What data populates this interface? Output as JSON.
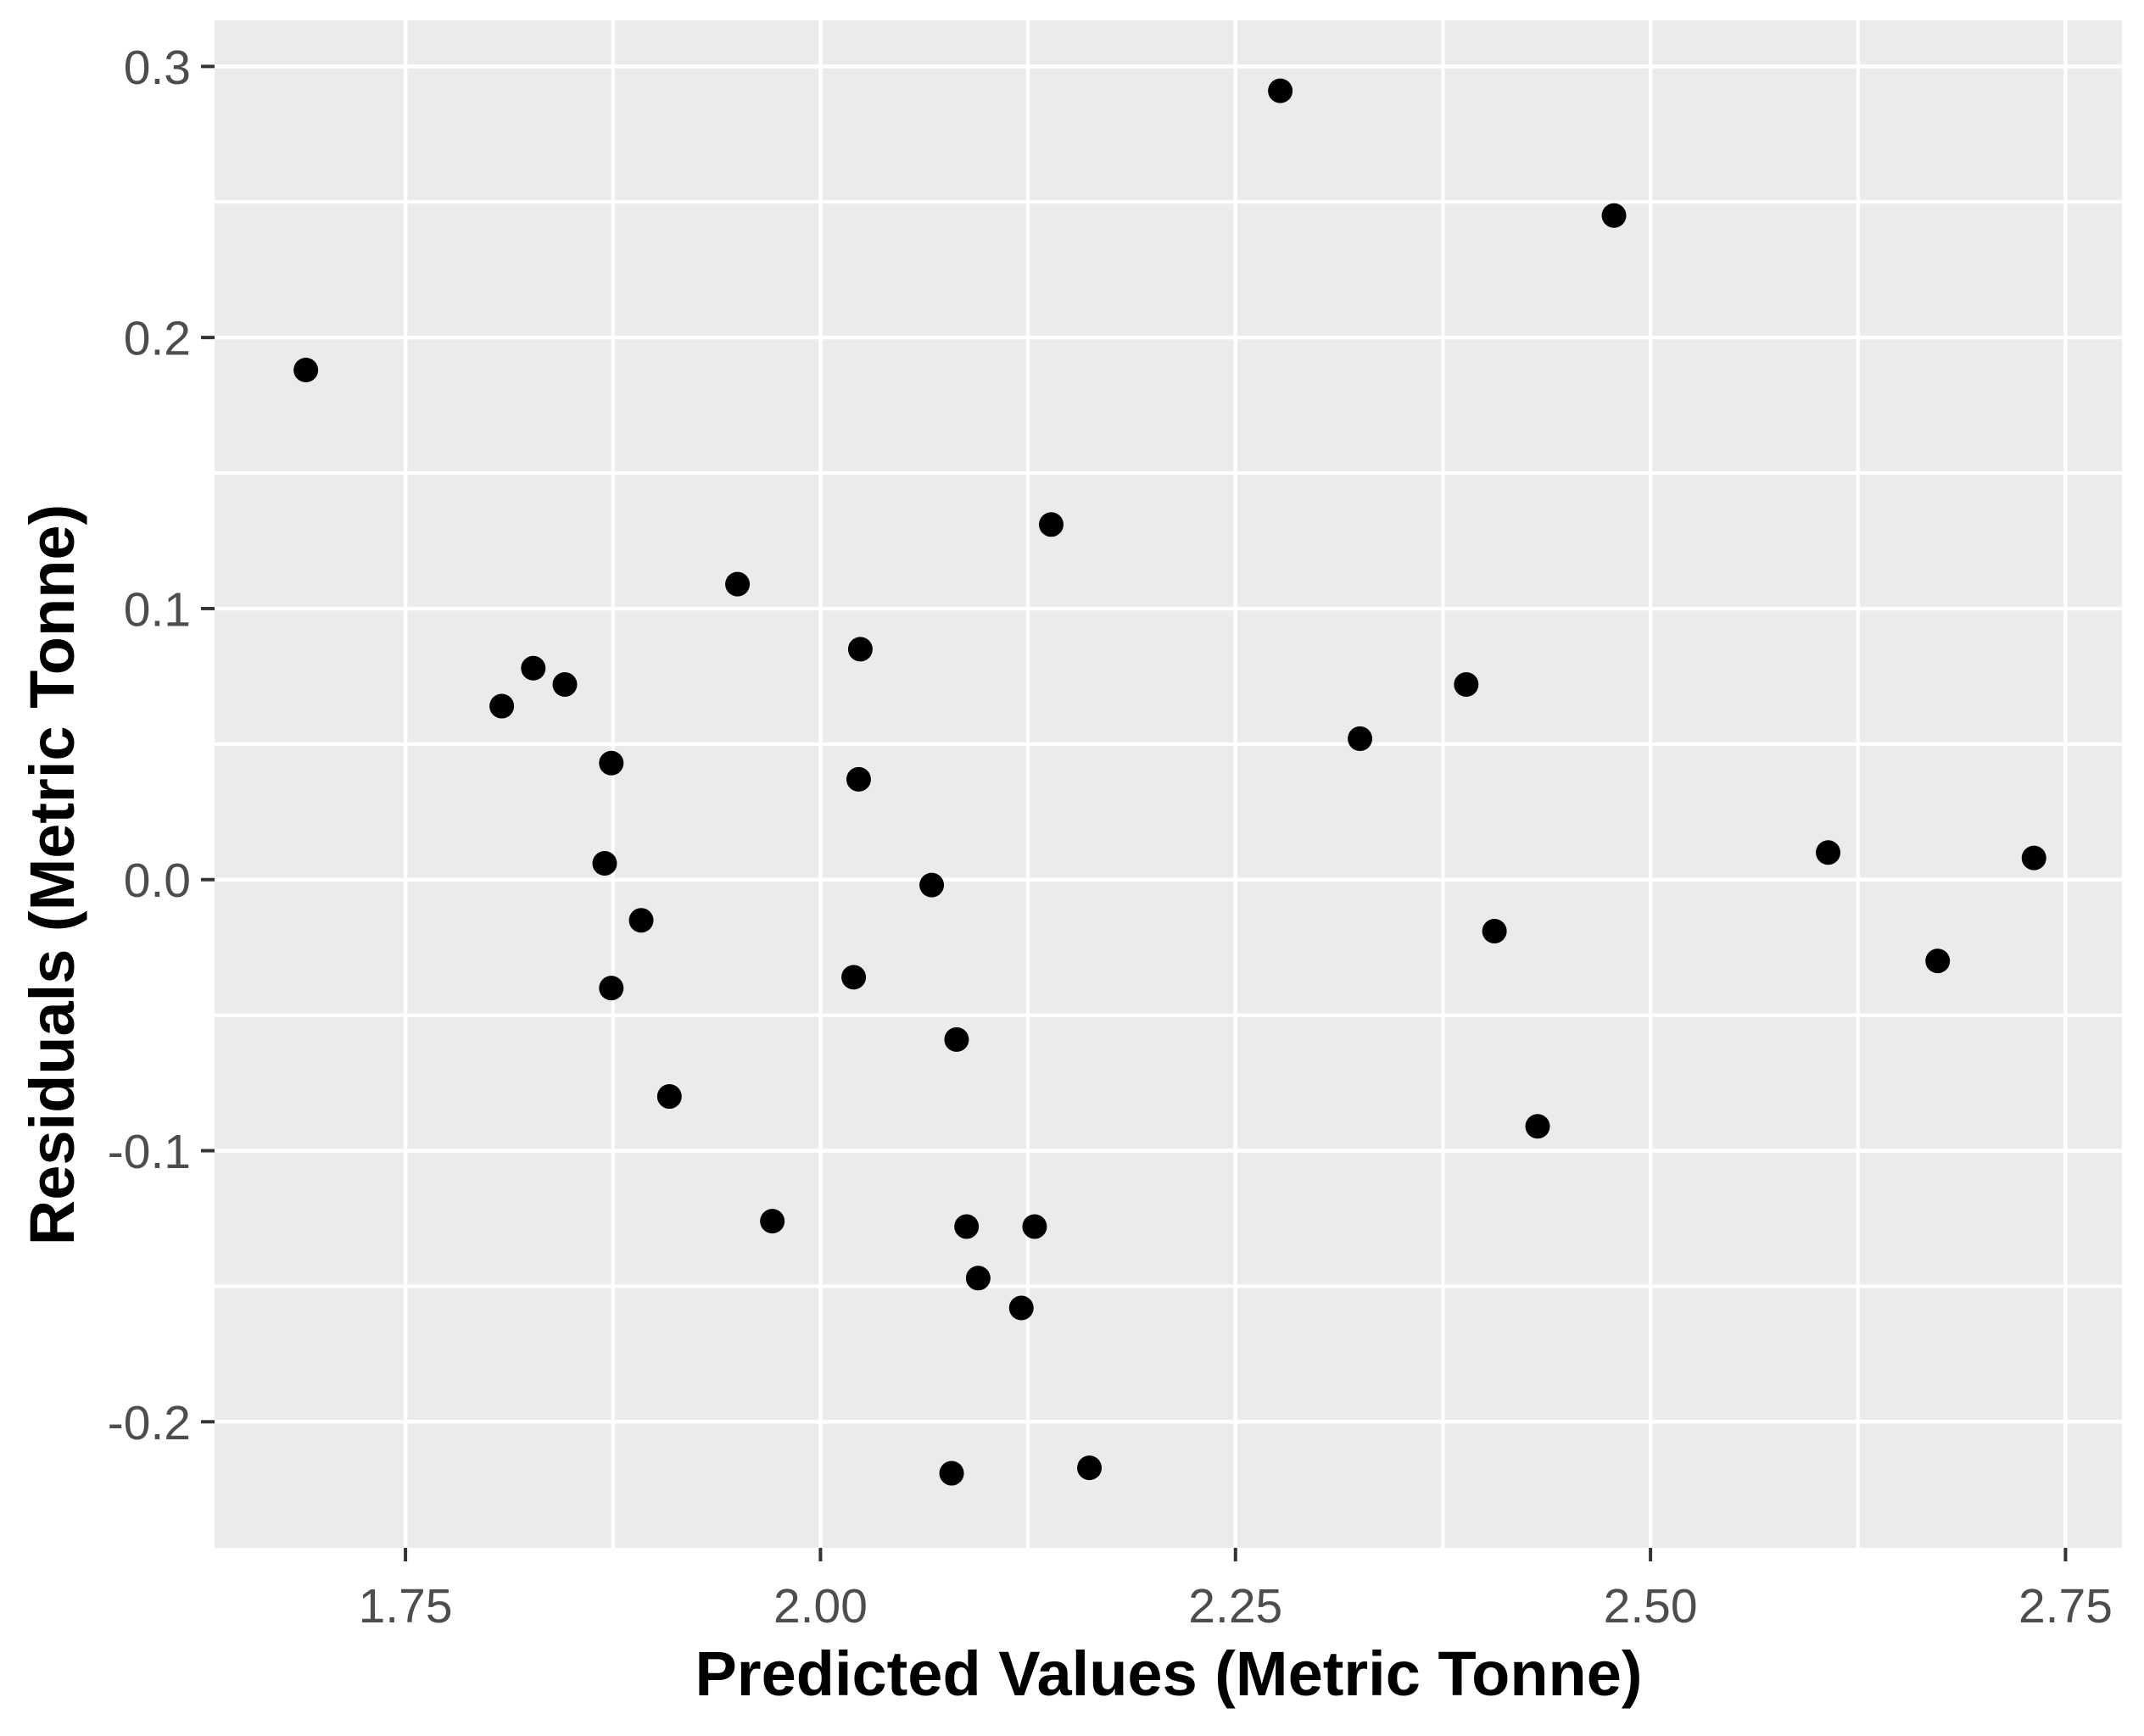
{
  "chart_data": {
    "type": "scatter",
    "title": "",
    "xlabel": "Predicted Values (Metric Tonne)",
    "ylabel": "Residuals (Metric Tonne)",
    "xlim": [
      1.635,
      2.784
    ],
    "ylim": [
      -0.2465,
      0.317
    ],
    "x_ticks": {
      "values": [
        1.75,
        2.0,
        2.25,
        2.5,
        2.75
      ],
      "labels": [
        "1.75",
        "2.00",
        "2.25",
        "2.50",
        "2.75"
      ]
    },
    "y_ticks": {
      "values": [
        0.3,
        0.2,
        0.1,
        0.0,
        -0.1,
        -0.2
      ],
      "labels": [
        "0.3",
        "0.2",
        "0.1",
        "0.0",
        "-0.1",
        "-0.2"
      ]
    },
    "x_minor_ticks": [
      1.875,
      2.125,
      2.375,
      2.625
    ],
    "y_minor_ticks": [
      0.25,
      0.15,
      0.05,
      -0.05,
      -0.15
    ],
    "grid": "major and minor white gridlines on gray panel",
    "legend": "none",
    "points": [
      [
        1.69,
        0.188
      ],
      [
        2.277,
        0.291
      ],
      [
        2.478,
        0.245
      ],
      [
        2.139,
        0.131
      ],
      [
        1.95,
        0.109
      ],
      [
        2.024,
        0.085
      ],
      [
        1.827,
        0.078
      ],
      [
        1.846,
        0.072
      ],
      [
        2.389,
        0.072
      ],
      [
        1.808,
        0.064
      ],
      [
        2.325,
        0.052
      ],
      [
        1.874,
        0.043
      ],
      [
        2.023,
        0.037
      ],
      [
        1.87,
        0.006
      ],
      [
        2.607,
        0.01
      ],
      [
        2.731,
        0.008
      ],
      [
        2.067,
        -0.002
      ],
      [
        1.892,
        -0.015
      ],
      [
        2.406,
        -0.019
      ],
      [
        2.673,
        -0.03
      ],
      [
        2.02,
        -0.036
      ],
      [
        1.874,
        -0.04
      ],
      [
        2.082,
        -0.059
      ],
      [
        1.909,
        -0.08
      ],
      [
        2.432,
        -0.091
      ],
      [
        1.971,
        -0.126
      ],
      [
        2.088,
        -0.128
      ],
      [
        2.129,
        -0.128
      ],
      [
        2.095,
        -0.147
      ],
      [
        2.121,
        -0.158
      ],
      [
        2.079,
        -0.219
      ],
      [
        2.162,
        -0.217
      ]
    ],
    "colors": {
      "panel_background": "#EBEBEB",
      "gridline": "#FFFFFF",
      "point": "#000000",
      "tick_mark": "#333333",
      "tick_label": "#4D4D4D",
      "axis_title": "#000000",
      "figure_background": "#FFFFFF"
    }
  }
}
